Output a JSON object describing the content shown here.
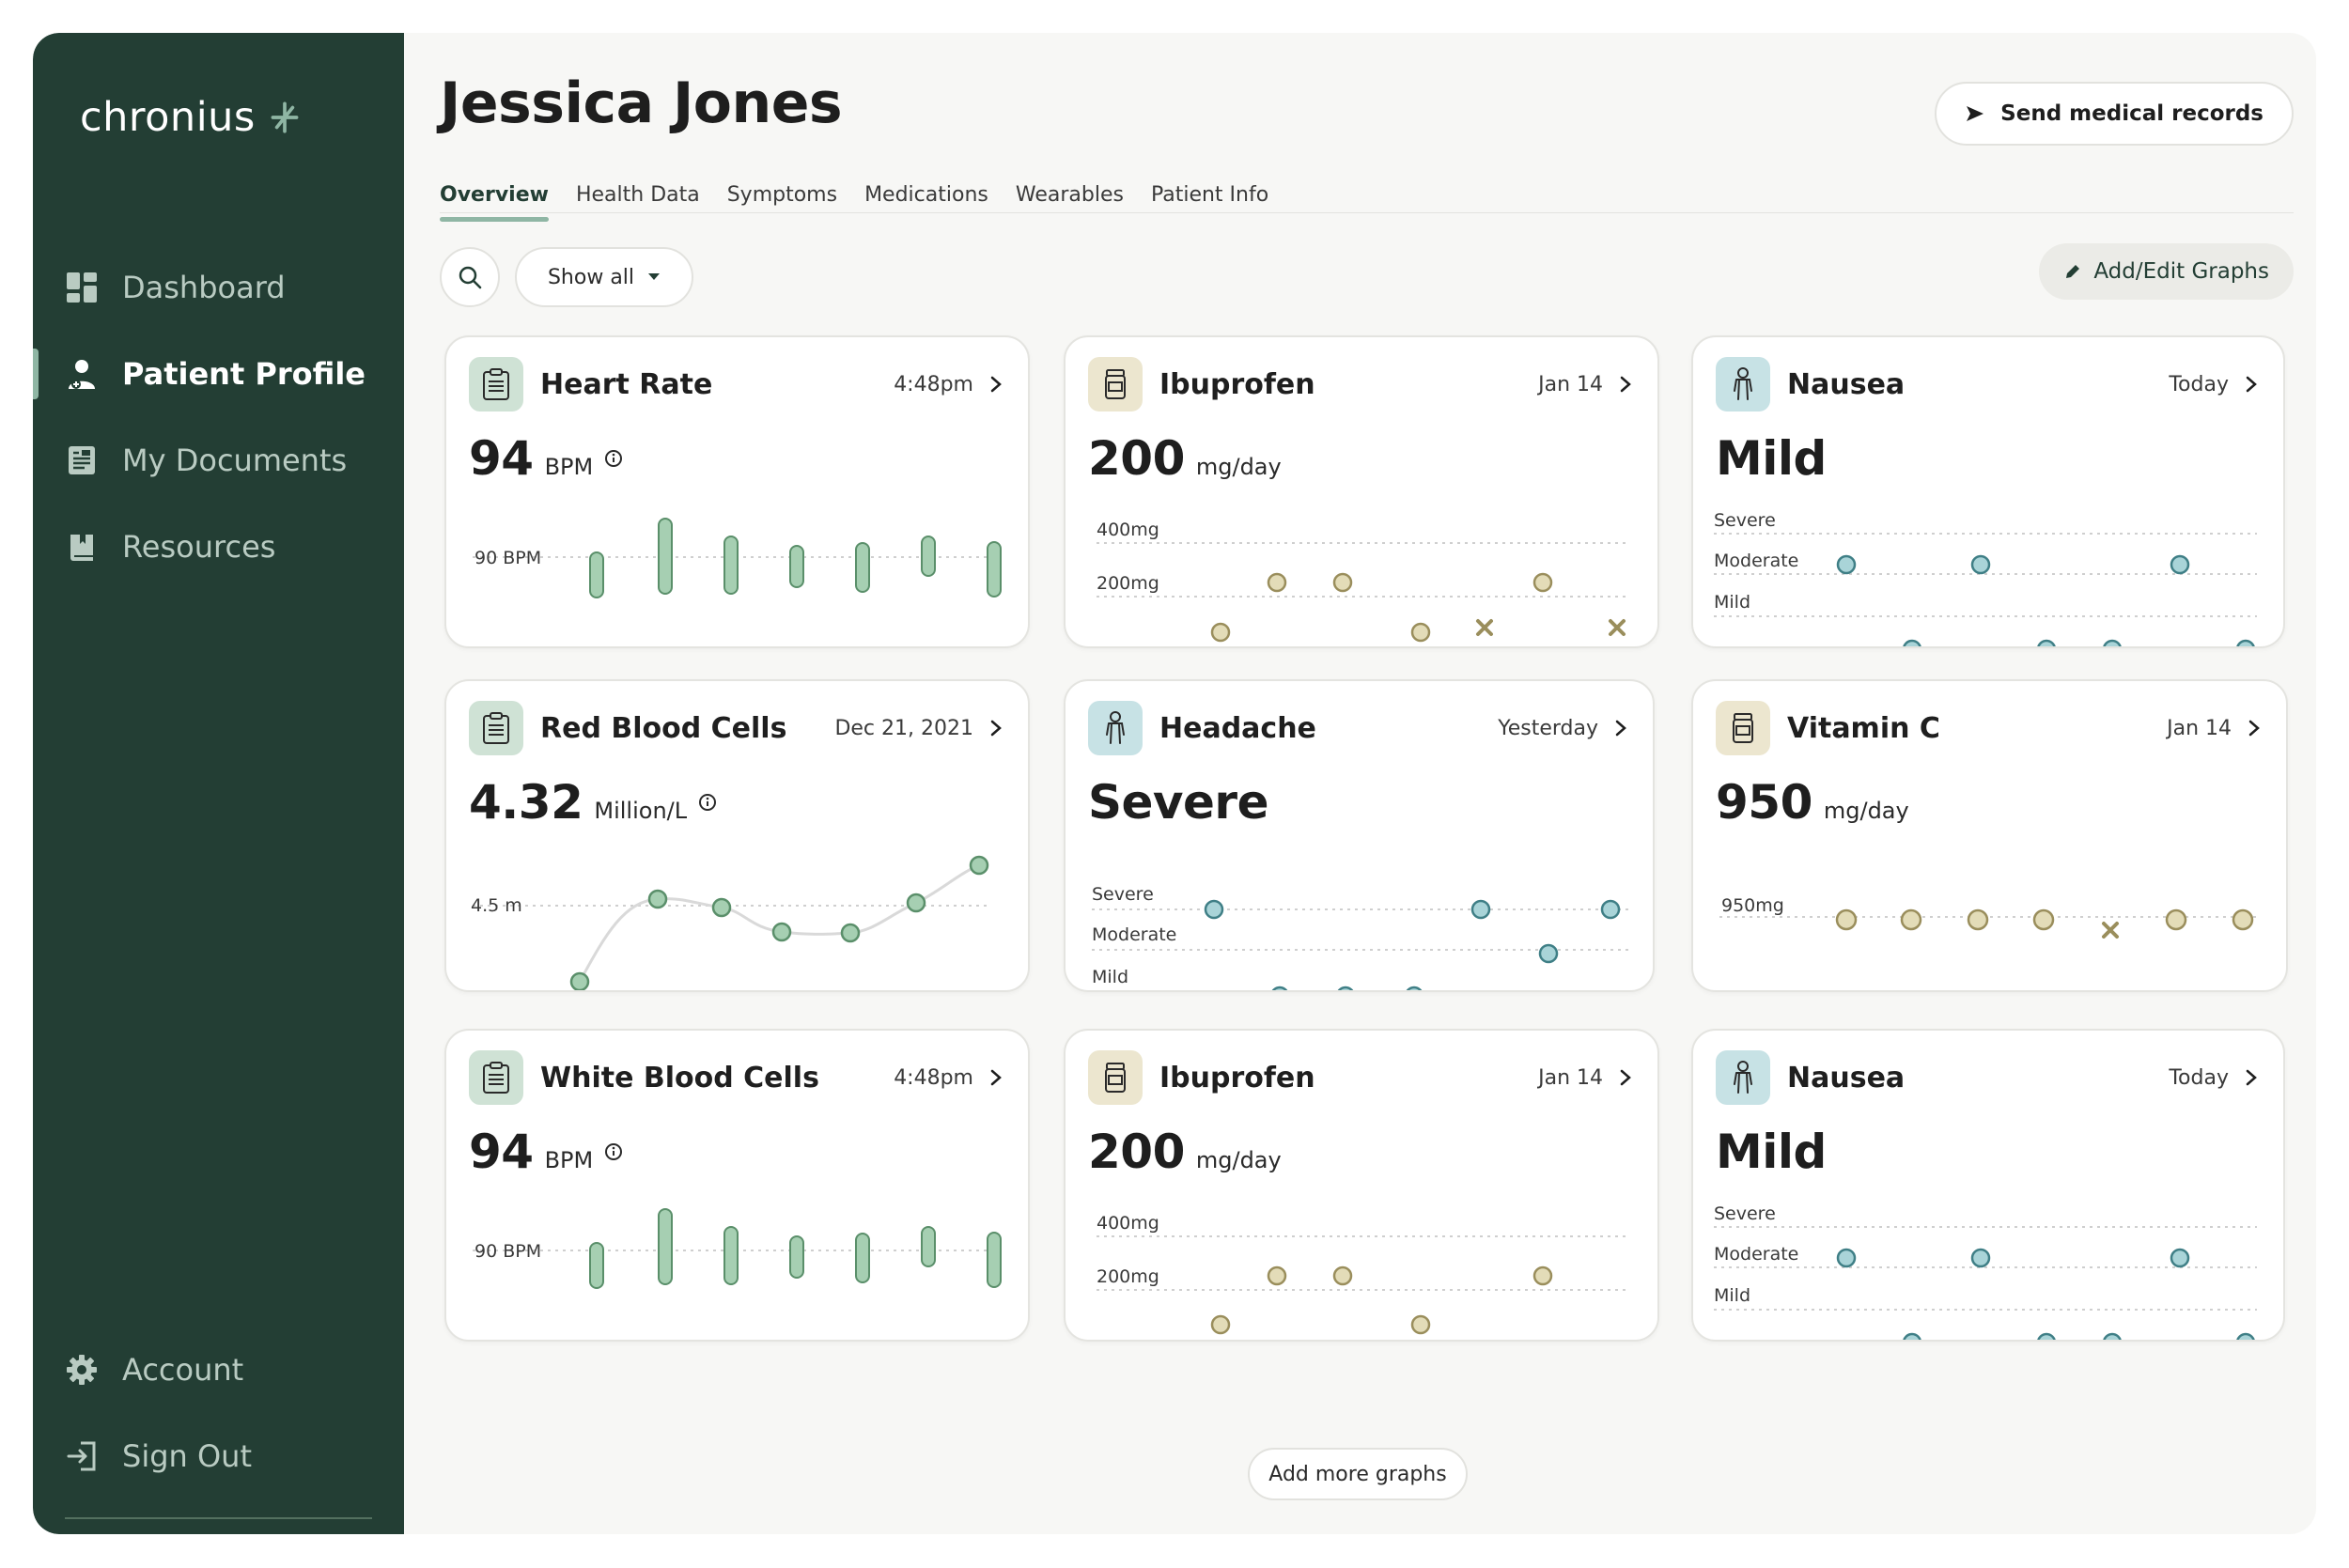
{
  "app": {
    "brand": "chronius",
    "brand_color": "#233e34",
    "accent_color": "#8fb6a4"
  },
  "sidebar": {
    "items": [
      {
        "label": "Dashboard",
        "icon": "dashboard-icon"
      },
      {
        "label": "Patient Profile",
        "icon": "patient-icon",
        "active": true
      },
      {
        "label": "My Documents",
        "icon": "document-icon"
      },
      {
        "label": "Resources",
        "icon": "book-icon"
      }
    ],
    "bottom_items": [
      {
        "label": "Account",
        "icon": "gear-icon"
      },
      {
        "label": "Sign Out",
        "icon": "sign-out-icon"
      }
    ]
  },
  "header": {
    "patient_name": "Jessica Jones",
    "send_button": "Send medical records",
    "tabs": [
      "Overview",
      "Health Data",
      "Symptoms",
      "Medications",
      "Wearables",
      "Patient Info"
    ],
    "active_tab": "Overview"
  },
  "toolbar": {
    "filter": "Show all",
    "add_edit": "Add/Edit Graphs"
  },
  "cards": [
    {
      "title": "Heart Rate",
      "time": "4:48pm",
      "value": "94",
      "unit": "BPM",
      "ref_label": "90 BPM",
      "icon": "clipboard-icon"
    },
    {
      "title": "Ibuprofen",
      "time": "Jan 14",
      "value": "200",
      "unit": "mg/day",
      "labels": [
        "400mg",
        "200mg"
      ],
      "icon": "pill-bottle-icon"
    },
    {
      "title": "Nausea",
      "time": "Today",
      "value": "Mild",
      "levels": [
        "Severe",
        "Moderate",
        "Mild"
      ],
      "icon": "person-icon"
    },
    {
      "title": "Red Blood Cells",
      "time": "Dec 21, 2021",
      "value": "4.32",
      "unit": "Million/L",
      "ref_label": "4.5 m",
      "icon": "clipboard-icon"
    },
    {
      "title": "Headache",
      "time": "Yesterday",
      "value": "Severe",
      "levels": [
        "Severe",
        "Moderate",
        "Mild"
      ],
      "icon": "person-icon"
    },
    {
      "title": "Vitamin C",
      "time": "Jan 14",
      "value": "950",
      "unit": "mg/day",
      "ref_label": "950mg",
      "icon": "pill-bottle-icon"
    },
    {
      "title": "White Blood Cells",
      "time": "4:48pm",
      "value": "94",
      "unit": "BPM",
      "ref_label": "90 BPM",
      "icon": "clipboard-icon"
    },
    {
      "title": "Ibuprofen",
      "time": "Jan 14",
      "value": "200",
      "unit": "mg/day",
      "labels": [
        "400mg",
        "200mg"
      ],
      "icon": "pill-bottle-icon"
    },
    {
      "title": "Nausea",
      "time": "Today",
      "value": "Mild",
      "levels": [
        "Severe",
        "Moderate",
        "Mild"
      ],
      "icon": "person-icon"
    }
  ],
  "footer": {
    "add_more": "Add more graphs"
  }
}
